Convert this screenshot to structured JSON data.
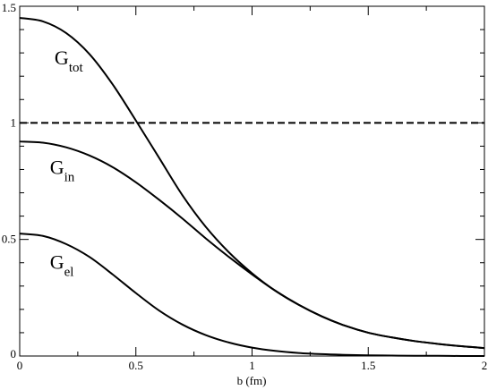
{
  "chart_data": {
    "type": "line",
    "title": "",
    "xlabel": "b (fm)",
    "ylabel": "",
    "xlim": [
      0,
      2
    ],
    "ylim": [
      0,
      1.5
    ],
    "grid": false,
    "x_ticks": [
      {
        "value": 0,
        "label": "0"
      },
      {
        "value": 0.5,
        "label": "0.5"
      },
      {
        "value": 1,
        "label": "1"
      },
      {
        "value": 1.5,
        "label": "1.5"
      },
      {
        "value": 2,
        "label": "2"
      }
    ],
    "y_ticks": [
      {
        "value": 0,
        "label": "0"
      },
      {
        "value": 0.5,
        "label": "0.5"
      },
      {
        "value": 1,
        "label": "1"
      },
      {
        "value": 1.5,
        "label": "1.5"
      }
    ],
    "series": [
      {
        "style": "solid",
        "color": "#000000",
        "x": [
          0,
          0.1,
          0.2,
          0.3,
          0.4,
          0.5,
          0.6,
          0.7,
          0.8,
          0.9,
          1.0,
          1.1,
          1.2,
          1.3,
          1.4,
          1.5,
          1.6,
          1.7,
          1.8,
          1.9,
          2.0
        ],
        "y": [
          1.45,
          1.435,
          1.385,
          1.295,
          1.165,
          1.01,
          0.85,
          0.69,
          0.555,
          0.445,
          0.355,
          0.28,
          0.22,
          0.17,
          0.13,
          0.1,
          0.08,
          0.064,
          0.052,
          0.042,
          0.034
        ]
      },
      {
        "style": "solid",
        "color": "#000000",
        "x": [
          0,
          0.1,
          0.2,
          0.3,
          0.4,
          0.5,
          0.6,
          0.7,
          0.8,
          0.9,
          1.0,
          1.1,
          1.2,
          1.3,
          1.4,
          1.5,
          1.6,
          1.7,
          1.8,
          1.9,
          2.0
        ],
        "y": [
          0.92,
          0.915,
          0.895,
          0.86,
          0.81,
          0.745,
          0.67,
          0.59,
          0.505,
          0.425,
          0.35,
          0.28,
          0.22,
          0.17,
          0.13,
          0.1,
          0.08,
          0.064,
          0.052,
          0.042,
          0.034
        ]
      },
      {
        "style": "solid",
        "color": "#000000",
        "x": [
          0,
          0.1,
          0.2,
          0.3,
          0.4,
          0.5,
          0.6,
          0.7,
          0.8,
          0.9,
          1.0,
          1.1,
          1.2,
          1.3,
          1.4,
          1.5,
          1.6,
          1.7,
          1.8,
          1.9,
          2.0
        ],
        "y": [
          0.525,
          0.515,
          0.48,
          0.425,
          0.35,
          0.27,
          0.195,
          0.135,
          0.09,
          0.058,
          0.036,
          0.022,
          0.013,
          0.008,
          0.005,
          0.003,
          0.002,
          0.001,
          0.001,
          0.0,
          0.0
        ]
      },
      {
        "style": "dashed",
        "color": "#000000",
        "x": [
          0,
          2
        ],
        "y": [
          1,
          1
        ]
      }
    ],
    "annotations": [
      {
        "main": "G",
        "sub": "tot",
        "x": 0.15,
        "y": 1.25
      },
      {
        "main": "G",
        "sub": "in",
        "x": 0.13,
        "y": 0.78
      },
      {
        "main": "G",
        "sub": "el",
        "x": 0.13,
        "y": 0.375
      }
    ]
  }
}
